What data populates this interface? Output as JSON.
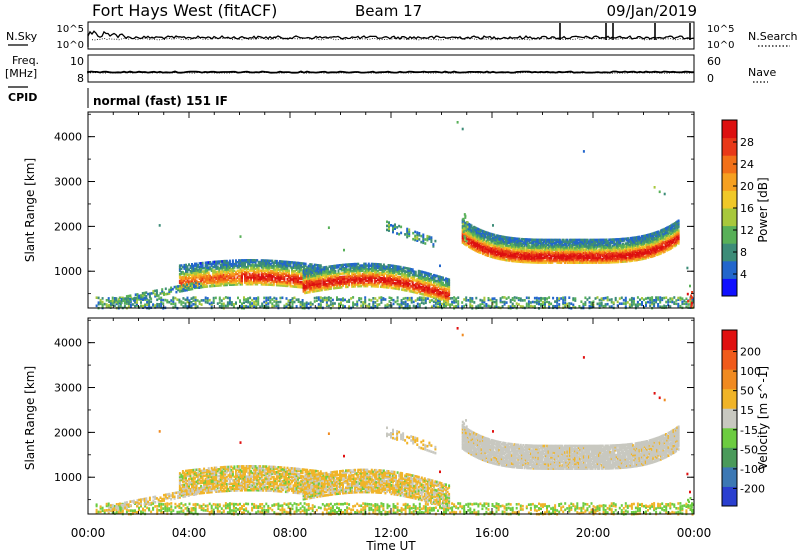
{
  "header": {
    "station": "Fort Hays West (fitACF)",
    "beam": "Beam 17",
    "date": "09/Jan/2019"
  },
  "top_panel": {
    "left_label": "N.Sky",
    "right_label": "N.Search",
    "left_ticks": [
      "10^5",
      "10^0"
    ],
    "right_ticks": [
      "10^5",
      "10^0"
    ]
  },
  "freq_panel": {
    "left_label_1": "Freq.",
    "left_label_2": "[MHz]",
    "right_label": "Nave",
    "left_ticks": [
      "10",
      "8"
    ],
    "right_ticks": [
      "60",
      "0"
    ],
    "cpid_label": "CPID",
    "mode_text": "normal (fast) 151 IF"
  },
  "chart_data": [
    {
      "type": "heatmap",
      "quantity": "Power",
      "ylabel": "Slant Range [km]",
      "xlabel": "",
      "y_ticks": [
        "1000",
        "2000",
        "3000",
        "4000"
      ],
      "ylim": [
        180,
        4550
      ],
      "colorbar_label": "Power [dB]",
      "colorbar_ticks": [
        "4",
        "8",
        "12",
        "16",
        "20",
        "24",
        "28"
      ],
      "colorbar_colors": [
        "#1010ff",
        "#2266cc",
        "#3c8c78",
        "#58b058",
        "#a8c83c",
        "#f0c828",
        "#f6a020",
        "#f27018",
        "#e83818",
        "#dd1010"
      ]
    },
    {
      "type": "heatmap",
      "quantity": "Velocity",
      "ylabel": "Slant Range [km]",
      "xlabel": "Time UT",
      "y_ticks": [
        "1000",
        "2000",
        "3000",
        "4000"
      ],
      "ylim": [
        180,
        4550
      ],
      "x_ticks": [
        "00:00",
        "04:00",
        "08:00",
        "12:00",
        "16:00",
        "20:00",
        "00:00"
      ],
      "colorbar_label": "Velocity [m s^-1]",
      "colorbar_ticks": [
        "200",
        "100",
        "50",
        "15",
        "-15",
        "-50",
        "-100",
        "-200"
      ],
      "colorbar_colors": [
        "#2a3fcf",
        "#3c78b4",
        "#4a9a5a",
        "#6ccc40",
        "#c8c8c0",
        "#f0b428",
        "#f08a20",
        "#f05a1a",
        "#e01010"
      ]
    }
  ]
}
